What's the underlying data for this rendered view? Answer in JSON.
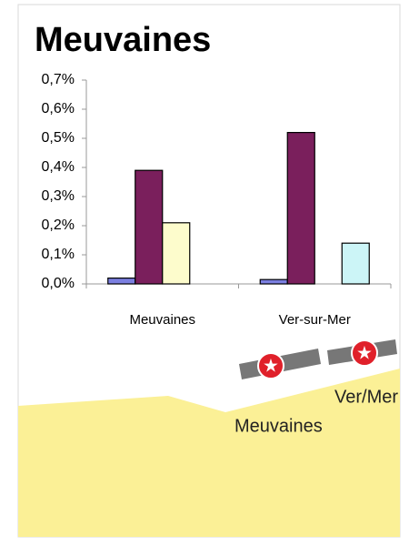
{
  "chart_data": {
    "type": "bar",
    "title": "Meuvaines",
    "categories": [
      "Meuvaines",
      "Ver-sur-Mer"
    ],
    "series": [
      {
        "color": "#7b7fe0",
        "values": [
          0.02,
          0.015
        ]
      },
      {
        "color": "#7a1f5c",
        "values": [
          0.39,
          0.52
        ]
      },
      {
        "color": "#fdfccc",
        "values": [
          0.21,
          null
        ]
      },
      {
        "color": "#ccf5f7",
        "values": [
          null,
          0.14
        ]
      }
    ],
    "ylim": [
      0,
      0.7
    ],
    "yticks": [
      {
        "value": 0,
        "label": "0,0%"
      },
      {
        "value": 0.1,
        "label": "0,1%"
      },
      {
        "value": 0.2,
        "label": "0,2%"
      },
      {
        "value": 0.3,
        "label": "0,3%"
      },
      {
        "value": 0.4,
        "label": "0,4%"
      },
      {
        "value": 0.5,
        "label": "0,5%"
      },
      {
        "value": 0.6,
        "label": "0,6%"
      },
      {
        "value": 0.7,
        "label": "0,7%"
      }
    ],
    "grid": false,
    "annotations": [
      "Meuvaines",
      "Ver/Mer"
    ]
  }
}
